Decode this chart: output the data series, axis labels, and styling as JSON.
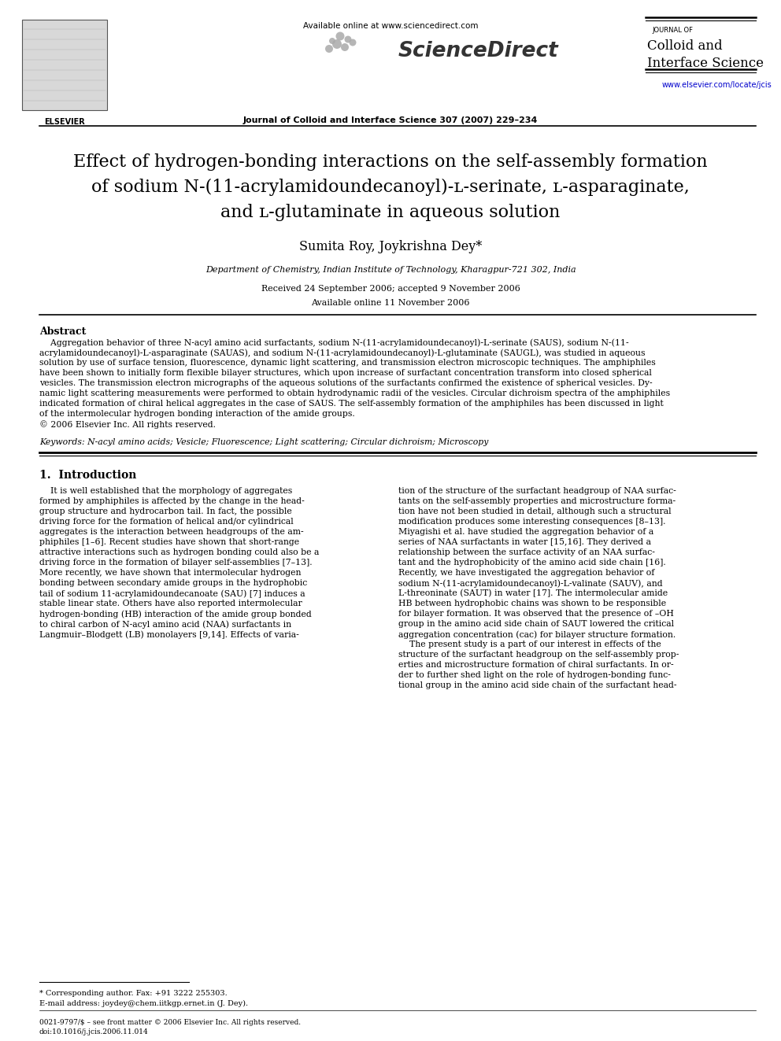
{
  "page_bg": "#ffffff",
  "header_available": "Available online at www.sciencedirect.com",
  "header_journal_bold": "Journal of Colloid and Interface Science 307 (2007) 229–234",
  "journal_right_line1": "JOURNAL OF",
  "journal_right_line2": "Colloid and",
  "journal_right_line3": "Interface Science",
  "journal_url": "www.elsevier.com/locate/jcis",
  "title_line1": "Effect of hydrogen-bonding interactions on the self-assembly formation",
  "title_line2": "of sodium N-(11-acrylamidoundecanoyl)-ʟ-serinate, ʟ-asparaginate,",
  "title_line3": "and ʟ-glutaminate in aqueous solution",
  "authors": "Sumita Roy, Joykrishna Dey*",
  "affiliation": "Department of Chemistry, Indian Institute of Technology, Kharagpur-721 302, India",
  "received": "Received 24 September 2006; accepted 9 November 2006",
  "available_online_date": "Available online 11 November 2006",
  "abstract_title": "Abstract",
  "abstract_lines": [
    "    Aggregation behavior of three N-acyl amino acid surfactants, sodium N-(11-acrylamidoundecanoyl)-L-serinate (SAUS), sodium N-(11-",
    "acrylamidoundecanoyl)-L-asparaginate (SAUAS), and sodium N-(11-acrylamidoundecanoyl)-L-glutaminate (SAUGL), was studied in aqueous",
    "solution by use of surface tension, fluorescence, dynamic light scattering, and transmission electron microscopic techniques. The amphiphiles",
    "have been shown to initially form flexible bilayer structures, which upon increase of surfactant concentration transform into closed spherical",
    "vesicles. The transmission electron micrographs of the aqueous solutions of the surfactants confirmed the existence of spherical vesicles. Dy-",
    "namic light scattering measurements were performed to obtain hydrodynamic radii of the vesicles. Circular dichroism spectra of the amphiphiles",
    "indicated formation of chiral helical aggregates in the case of SAUS. The self-assembly formation of the amphiphiles has been discussed in light",
    "of the intermolecular hydrogen bonding interaction of the amide groups.",
    "© 2006 Elsevier Inc. All rights reserved."
  ],
  "keywords": "Keywords: N-acyl amino acids; Vesicle; Fluorescence; Light scattering; Circular dichroism; Microscopy",
  "intro_title": "1.  Introduction",
  "col1_lines": [
    "    It is well established that the morphology of aggregates",
    "formed by amphiphiles is affected by the change in the head-",
    "group structure and hydrocarbon tail. In fact, the possible",
    "driving force for the formation of helical and/or cylindrical",
    "aggregates is the interaction between headgroups of the am-",
    "phiphiles [1–6]. Recent studies have shown that short-range",
    "attractive interactions such as hydrogen bonding could also be a",
    "driving force in the formation of bilayer self-assemblies [7–13].",
    "More recently, we have shown that intermolecular hydrogen",
    "bonding between secondary amide groups in the hydrophobic",
    "tail of sodium 11-acrylamidoundecanoate (SAU) [7] induces a",
    "stable linear state. Others have also reported intermolecular",
    "hydrogen-bonding (HB) interaction of the amide group bonded",
    "to chiral carbon of N-acyl amino acid (NAA) surfactants in",
    "Langmuir–Blodgett (LB) monolayers [9,14]. Effects of varia-"
  ],
  "col2_lines": [
    "tion of the structure of the surfactant headgroup of NAA surfac-",
    "tants on the self-assembly properties and microstructure forma-",
    "tion have not been studied in detail, although such a structural",
    "modification produces some interesting consequences [8–13].",
    "Miyagishi et al. have studied the aggregation behavior of a",
    "series of NAA surfactants in water [15,16]. They derived a",
    "relationship between the surface activity of an NAA surfac-",
    "tant and the hydrophobicity of the amino acid side chain [16].",
    "Recently, we have investigated the aggregation behavior of",
    "sodium N-(11-acrylamidoundecanoyl)-L-valinate (SAUV), and",
    "L-threoninate (SAUT) in water [17]. The intermolecular amide",
    "HB between hydrophobic chains was shown to be responsible",
    "for bilayer formation. It was observed that the presence of –OH",
    "group in the amino acid side chain of SAUT lowered the critical",
    "aggregation concentration (cac) for bilayer structure formation.",
    "    The present study is a part of our interest in effects of the",
    "structure of the surfactant headgroup on the self-assembly prop-",
    "erties and microstructure formation of chiral surfactants. In or-",
    "der to further shed light on the role of hydrogen-bonding func-",
    "tional group in the amino acid side chain of the surfactant head-"
  ],
  "footnote_star": "* Corresponding author. Fax: +91 3222 255303.",
  "footnote_email": "E-mail address: joydey@chem.iitkgp.ernet.in (J. Dey).",
  "footnote_issn": "0021-9797/$ – see front matter © 2006 Elsevier Inc. All rights reserved.",
  "footnote_doi": "doi:10.1016/j.jcis.2006.11.014"
}
